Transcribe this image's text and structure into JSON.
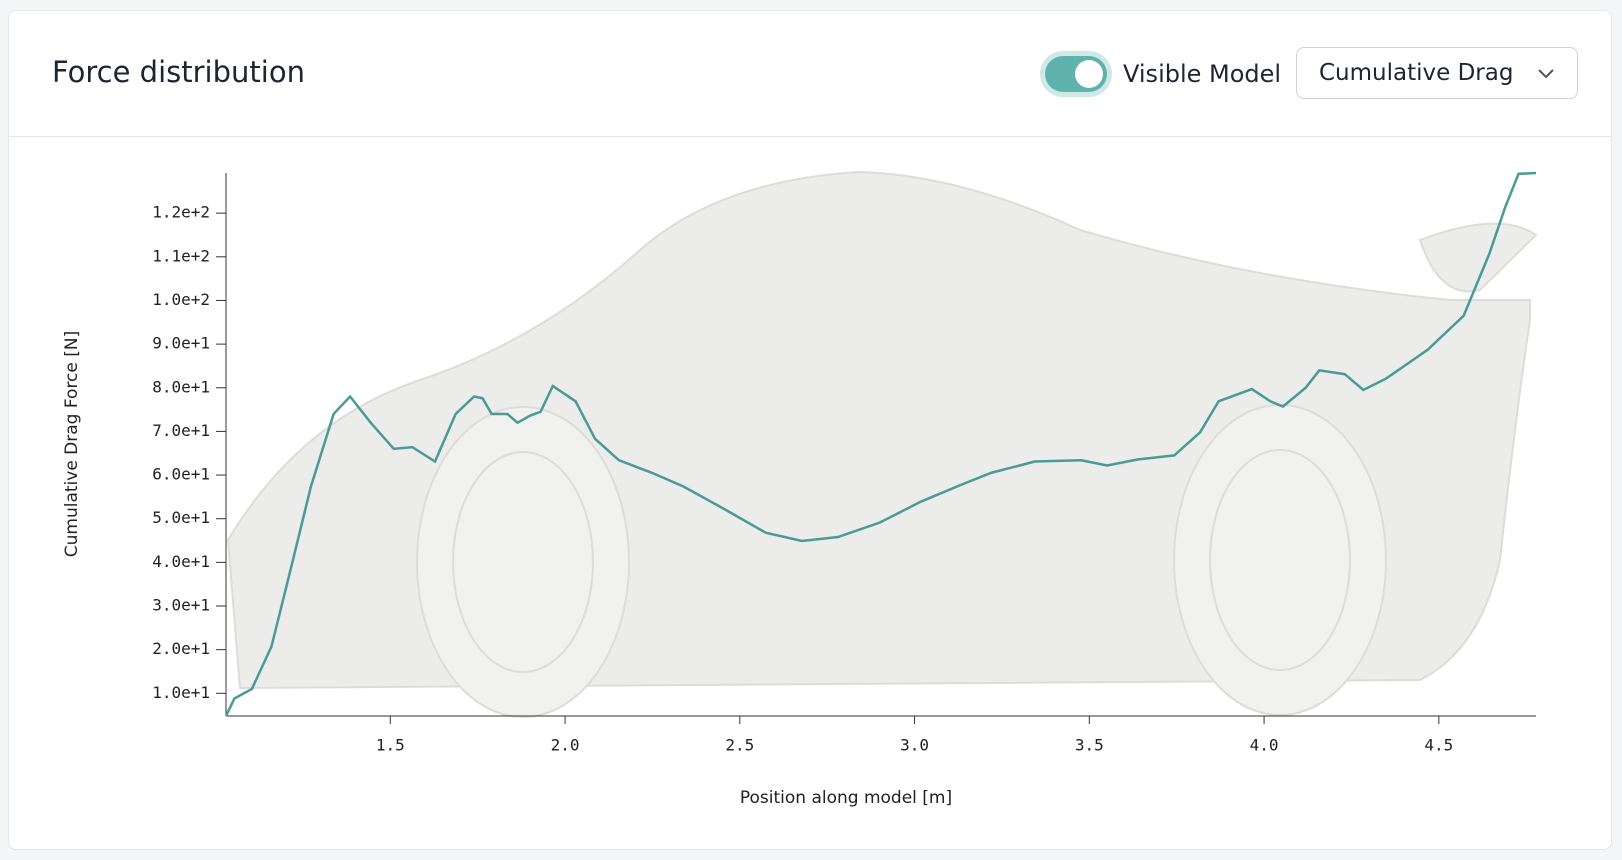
{
  "header": {
    "title": "Force distribution",
    "toggle_label": "Visible Model",
    "dropdown": "Cumulative Drag"
  },
  "chart_data": {
    "type": "line",
    "x_label": "Position along model [m]",
    "y_label": "Cumulative Drag Force [N]",
    "xlim": [
      1.03,
      4.778
    ],
    "ylim": [
      4.8,
      129.2
    ],
    "xticks": [
      1.5,
      {
        "value": 2,
        "label": "2.0"
      },
      2.5,
      {
        "value": 3,
        "label": "3.0"
      },
      3.5,
      {
        "value": 4,
        "label": "4.0"
      },
      4.5
    ],
    "yticks": [
      {
        "value": 10,
        "label": "1.0e+1"
      },
      {
        "value": 20,
        "label": "2.0e+1"
      },
      {
        "value": 30,
        "label": "3.0e+1"
      },
      {
        "value": 40,
        "label": "4.0e+1"
      },
      {
        "value": 50,
        "label": "5.0e+1"
      },
      {
        "value": 60,
        "label": "6.0e+1"
      },
      {
        "value": 70,
        "label": "7.0e+1"
      },
      {
        "value": 80,
        "label": "8.0e+1"
      },
      {
        "value": 90,
        "label": "9.0e+1"
      },
      {
        "value": 100,
        "label": "1.0e+2"
      },
      {
        "value": 110,
        "label": "1.1e+2"
      },
      {
        "value": 120,
        "label": "1.2e+2"
      }
    ],
    "series": [
      {
        "name": "Cumulative Drag",
        "color": "#4a9a95",
        "x": [
          1.03,
          1.054,
          1.104,
          1.16,
          1.219,
          1.273,
          1.338,
          1.385,
          1.444,
          1.51,
          1.563,
          1.628,
          1.687,
          1.74,
          1.764,
          1.79,
          1.835,
          1.864,
          1.9,
          1.93,
          1.965,
          2.03,
          2.086,
          2.154,
          2.249,
          2.338,
          2.456,
          2.574,
          2.678,
          2.781,
          2.9,
          3.018,
          3.137,
          3.219,
          3.344,
          3.477,
          3.551,
          3.64,
          3.743,
          3.817,
          3.87,
          3.965,
          4.018,
          4.054,
          4.119,
          4.158,
          4.231,
          4.284,
          4.349,
          4.468,
          4.571,
          4.645,
          4.69,
          4.728,
          4.778
        ],
        "values": [
          4.8,
          8.8,
          11,
          20.7,
          39.7,
          57.4,
          74,
          78,
          72,
          66,
          66.4,
          63.1,
          74,
          78,
          77.6,
          74,
          74,
          72,
          73.6,
          74.5,
          80.4,
          76.9,
          68.3,
          63.4,
          60.5,
          57.4,
          52.2,
          46.8,
          44.9,
          45.8,
          49.1,
          53.9,
          57.9,
          60.5,
          63.1,
          63.4,
          62.2,
          63.6,
          64.5,
          69.8,
          76.9,
          79.7,
          76.9,
          75.7,
          80,
          84,
          83.1,
          79.5,
          82.1,
          88.7,
          96.5,
          110.8,
          121.4,
          129,
          129.2
        ]
      }
    ]
  }
}
